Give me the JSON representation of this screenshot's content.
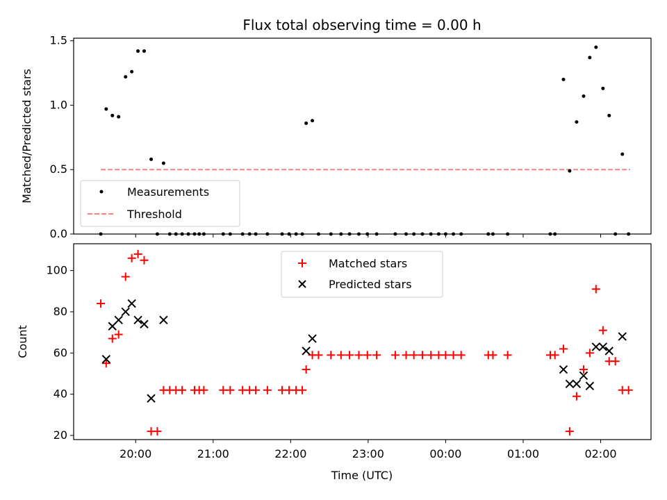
{
  "chart_data": {
    "title": "Flux total observing time = 0.00 h",
    "type": "scatter",
    "xlabel": "Time (UTC)",
    "x_ticks": [
      "20:00",
      "21:00",
      "22:00",
      "23:00",
      "00:00",
      "01:00",
      "02:00"
    ],
    "x_tick_offsets_h": [
      0,
      1,
      2,
      3,
      4,
      5,
      6
    ],
    "xlim_h": [
      -0.8,
      6.65
    ],
    "top": {
      "ylabel": "Matched/Predicted stars",
      "ylim": [
        0,
        1.52
      ],
      "yticks": [
        0.0,
        0.5,
        1.0,
        1.5
      ],
      "ytick_labels": [
        "0.0",
        "0.5",
        "1.0",
        "1.5"
      ],
      "legend": [
        "Measurements",
        "Threshold"
      ],
      "threshold": {
        "name": "Threshold",
        "value": 0.5,
        "color": "#ff7f7f",
        "x_range_h": [
          -0.45,
          6.38
        ]
      },
      "measurements": {
        "name": "Measurements",
        "color": "#000000",
        "x_h": [
          -0.45,
          -0.38,
          -0.3,
          -0.22,
          -0.13,
          -0.05,
          0.03,
          0.11,
          0.2,
          0.28,
          0.36,
          0.44,
          0.52,
          0.6,
          0.68,
          0.76,
          0.82,
          0.88,
          1.13,
          1.22,
          1.38,
          1.47,
          1.55,
          1.7,
          1.89,
          1.98,
          2.07,
          2.15,
          2.2,
          2.28,
          2.36,
          2.52,
          2.65,
          2.76,
          2.88,
          2.99,
          3.11,
          3.35,
          3.49,
          3.59,
          3.7,
          3.81,
          3.91,
          4.0,
          4.1,
          4.2,
          4.55,
          4.61,
          4.8,
          5.35,
          5.41,
          5.52,
          5.6,
          5.69,
          5.78,
          5.86,
          5.94,
          6.03,
          6.11,
          6.19,
          6.28,
          6.36
        ],
        "y": [
          0.0,
          0.97,
          0.92,
          0.91,
          1.22,
          1.26,
          1.42,
          1.42,
          0.58,
          0.0,
          0.55,
          0.0,
          0.0,
          0.0,
          0.0,
          0.0,
          0.0,
          0.0,
          0.0,
          0.0,
          0.0,
          0.0,
          0.0,
          0.0,
          0.0,
          0.0,
          0.0,
          0.0,
          0.86,
          0.88,
          0.0,
          0.0,
          0.0,
          0.0,
          0.0,
          0.0,
          0.0,
          0.0,
          0.0,
          0.0,
          0.0,
          0.0,
          0.0,
          0.0,
          0.0,
          0.0,
          0.0,
          0.0,
          0.0,
          0.0,
          0.0,
          1.2,
          0.49,
          0.87,
          1.07,
          1.37,
          1.45,
          1.13,
          0.92,
          0.0,
          0.62,
          0.0
        ]
      }
    },
    "bottom": {
      "ylabel": "Count",
      "ylim": [
        18,
        113
      ],
      "yticks": [
        20,
        40,
        60,
        80,
        100
      ],
      "ytick_labels": [
        "20",
        "40",
        "60",
        "80",
        "100"
      ],
      "legend": [
        "Matched stars",
        "Predicted stars"
      ],
      "matched": {
        "name": "Matched stars",
        "color": "#ff0000",
        "x_h": [
          -0.45,
          -0.38,
          -0.3,
          -0.22,
          -0.13,
          -0.05,
          0.03,
          0.11,
          0.2,
          0.28,
          0.36,
          0.44,
          0.52,
          0.6,
          0.76,
          0.82,
          0.88,
          1.13,
          1.22,
          1.38,
          1.47,
          1.55,
          1.7,
          1.89,
          1.98,
          2.07,
          2.15,
          2.2,
          2.28,
          2.36,
          2.52,
          2.65,
          2.76,
          2.88,
          2.99,
          3.11,
          3.35,
          3.49,
          3.59,
          3.7,
          3.81,
          3.91,
          4.0,
          4.1,
          4.2,
          4.55,
          4.61,
          4.8,
          5.35,
          5.41,
          5.52,
          5.6,
          5.69,
          5.78,
          5.86,
          5.94,
          6.03,
          6.11,
          6.19,
          6.28,
          6.36
        ],
        "y": [
          84,
          55,
          67,
          69,
          97,
          106,
          108,
          105,
          22,
          22,
          42,
          42,
          42,
          42,
          42,
          42,
          42,
          42,
          42,
          42,
          42,
          42,
          42,
          42,
          42,
          42,
          42,
          52,
          59,
          59,
          59,
          59,
          59,
          59,
          59,
          59,
          59,
          59,
          59,
          59,
          59,
          59,
          59,
          59,
          59,
          59,
          59,
          59,
          59,
          59,
          62,
          22,
          39,
          52,
          60,
          91,
          71,
          56,
          56,
          42,
          42
        ]
      },
      "predicted": {
        "name": "Predicted stars",
        "color": "#000000",
        "x_h": [
          -0.38,
          -0.3,
          -0.22,
          -0.13,
          -0.05,
          0.03,
          0.11,
          0.2,
          0.36,
          2.2,
          2.28,
          5.52,
          5.6,
          5.69,
          5.78,
          5.86,
          5.94,
          6.03,
          6.11,
          6.28
        ],
        "y": [
          57,
          73,
          76,
          80,
          84,
          76,
          74,
          38,
          76,
          61,
          67,
          52,
          45,
          45,
          49,
          44,
          63,
          63,
          61,
          68
        ]
      }
    }
  }
}
